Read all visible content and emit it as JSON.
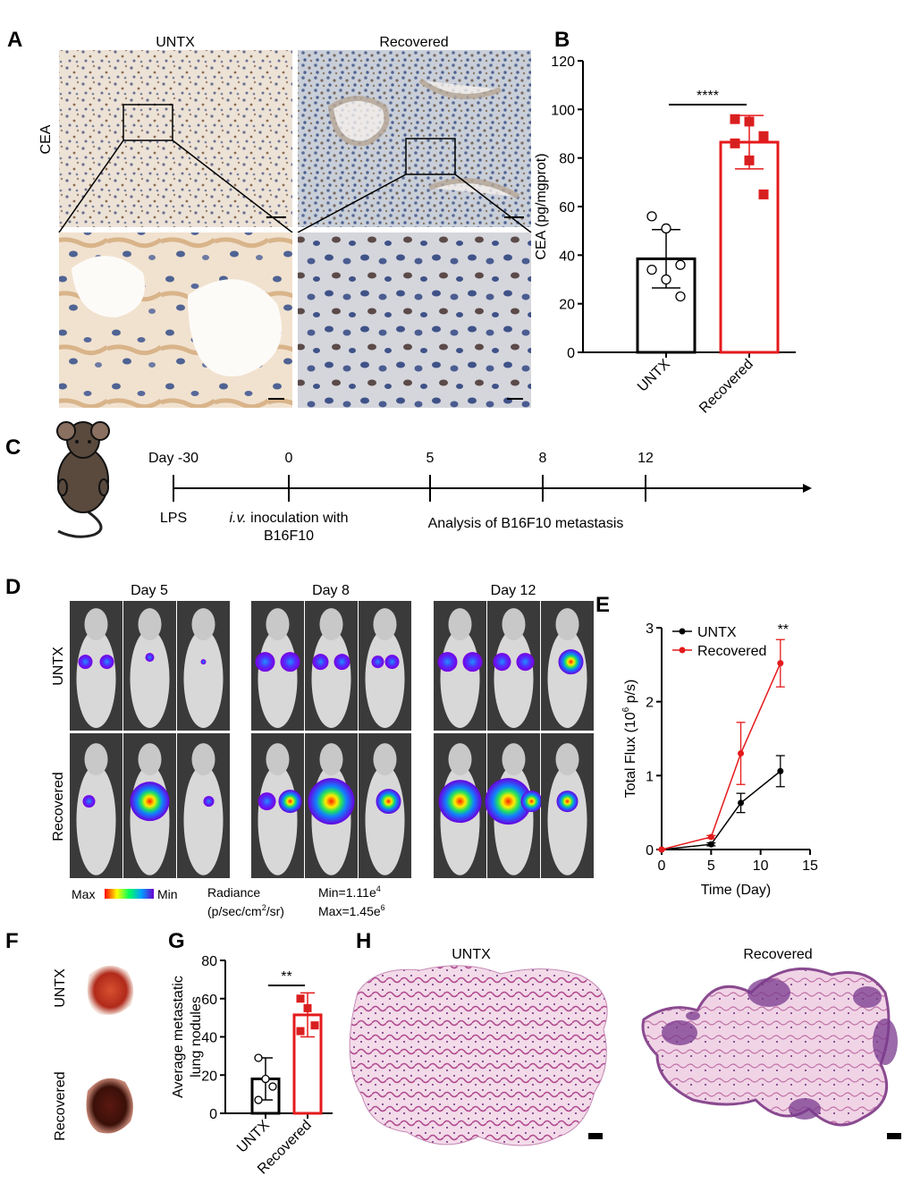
{
  "panel_labels": [
    "A",
    "B",
    "C",
    "D",
    "E",
    "F",
    "G",
    "H"
  ],
  "panel_a": {
    "columns": [
      "UNTX",
      "Recovered"
    ],
    "row_label": "CEA"
  },
  "chart_data": [
    {
      "type": "bar",
      "categories": [
        "UNTX",
        "Recovered"
      ],
      "values": [
        38.5,
        86.5
      ],
      "errors": [
        12,
        11
      ],
      "points": [
        [
          56,
          51,
          36,
          34,
          30,
          23
        ],
        [
          96,
          95,
          89,
          86,
          79,
          65
        ]
      ],
      "colors": [
        "#000000",
        "#e41a1c"
      ],
      "markers": [
        "circle",
        "square"
      ],
      "marker_fills": [
        "#ffffff",
        "#d62020"
      ],
      "y_label": "CEA (pg/mgprot)",
      "ylim": [
        0,
        120
      ],
      "yticks": [
        0,
        20,
        40,
        60,
        80,
        100,
        120
      ],
      "significance": "****"
    },
    {
      "type": "line",
      "x": [
        0,
        5,
        8,
        12
      ],
      "series": [
        {
          "name": "UNTX",
          "color": "#000000",
          "values": [
            0,
            0.07,
            0.63,
            1.06
          ],
          "errors": [
            0,
            0.02,
            0.13,
            0.21
          ]
        },
        {
          "name": "Recovered",
          "color": "#e41a1c",
          "values": [
            0,
            0.17,
            1.3,
            2.52
          ],
          "errors": [
            0,
            0.02,
            0.42,
            0.32
          ]
        }
      ],
      "x_label": "Time (Day)",
      "y_label": [
        "Total Flux (10",
        "6",
        " p/s)"
      ],
      "xlim": [
        0,
        15
      ],
      "xticks": [
        0,
        5,
        10,
        15
      ],
      "ylim": [
        0,
        3
      ],
      "yticks": [
        0,
        1,
        2,
        3
      ],
      "annotation": "**",
      "legend": "upper-left"
    },
    {
      "type": "bar",
      "categories": [
        "UNTX",
        "Recovered"
      ],
      "values": [
        18,
        51.5
      ],
      "errors": [
        11,
        11.5
      ],
      "points": [
        [
          29,
          18,
          14,
          7
        ],
        [
          60,
          55,
          46,
          43
        ]
      ],
      "colors": [
        "#000000",
        "#e41a1c"
      ],
      "markers": [
        "circle",
        "square"
      ],
      "marker_fills": [
        "#ffffff",
        "#d62020"
      ],
      "y_label": [
        "Average metastatic",
        "lung nodules"
      ],
      "ylim": [
        0,
        80
      ],
      "yticks": [
        0,
        20,
        40,
        60,
        80
      ],
      "significance": "**"
    }
  ],
  "timeline": {
    "days": [
      "Day -30",
      "0",
      "5",
      "8",
      "12"
    ],
    "events": {
      "lps": "LPS",
      "inoculation": [
        "i.v.",
        " inoculation with",
        "B16F10"
      ],
      "analysis": "Analysis of B16F10 metastasis"
    }
  },
  "panel_d": {
    "columns": [
      "Day 5",
      "Day 8",
      "Day 12"
    ],
    "rows": [
      "UNTX",
      "Recovered"
    ],
    "scale": {
      "max": "Max",
      "min": "Min"
    },
    "radiance": [
      "Radiance",
      "(p/sec/cm",
      "2",
      "/sr)"
    ],
    "range": [
      [
        "Min=1.11e",
        "4"
      ],
      [
        "Max=1.45e",
        "6"
      ]
    ]
  },
  "panel_f": {
    "rows": [
      "UNTX",
      "Recovered"
    ]
  },
  "panel_h": {
    "columns": [
      "UNTX",
      "Recovered"
    ]
  }
}
